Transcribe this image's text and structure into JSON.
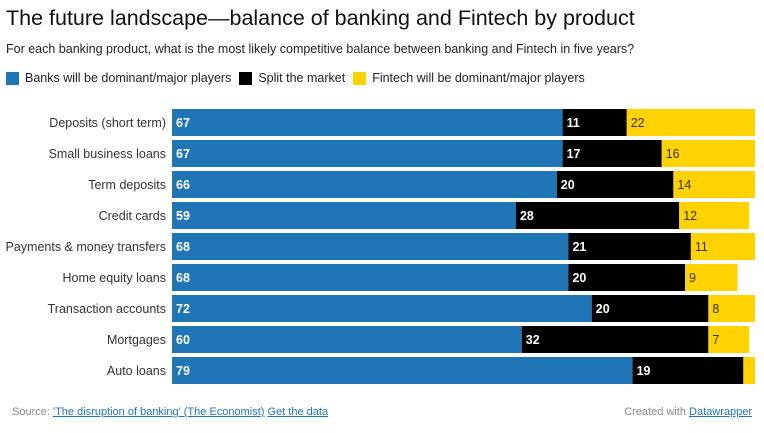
{
  "title": "The future landscape—balance of banking and Fintech by product",
  "subtitle": "For each banking product, what is the most likely competitive balance between banking and Fintech in five years?",
  "legend": [
    {
      "label": "Banks will be dominant/major players",
      "color": "#1f75b6"
    },
    {
      "label": "Split the market",
      "color": "#000000"
    },
    {
      "label": "Fintech will be dominant/major players",
      "color": "#ffd200"
    }
  ],
  "footer": {
    "source_prefix": "Source:",
    "source_link": "'The disruption of banking' (The Economist)",
    "data_link": "Get the data",
    "created_prefix": "Created with",
    "created_link": "Datawrapper"
  },
  "chart_data": {
    "type": "bar",
    "orientation": "horizontal",
    "stacked": true,
    "categories": [
      "Deposits (short term)",
      "Small business loans",
      "Term deposits",
      "Credit cards",
      "Payments & money transfers",
      "Home equity loans",
      "Transaction accounts",
      "Mortgages",
      "Auto loans"
    ],
    "series": [
      {
        "name": "Banks will be dominant/major players",
        "color": "#1f75b6",
        "label_color": "#ffffff",
        "values": [
          67,
          67,
          66,
          59,
          68,
          68,
          72,
          60,
          79
        ]
      },
      {
        "name": "Split the market",
        "color": "#000000",
        "label_color": "#ffffff",
        "values": [
          11,
          17,
          20,
          28,
          21,
          20,
          20,
          32,
          19
        ]
      },
      {
        "name": "Fintech will be dominant/major players",
        "color": "#ffd200",
        "label_color": "#333333",
        "values": [
          22,
          16,
          14,
          12,
          11,
          9,
          8,
          7,
          2
        ]
      }
    ],
    "xlim": [
      0,
      100
    ],
    "grid": false,
    "legend_position": "top"
  }
}
